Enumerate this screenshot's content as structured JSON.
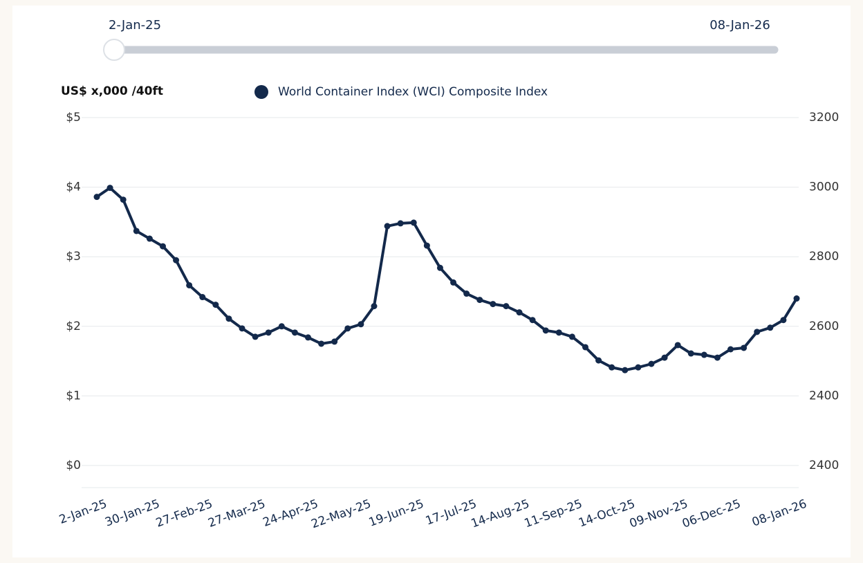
{
  "slider": {
    "start_label": "2-Jan-25",
    "end_label": "08-Jan-26"
  },
  "chart_data": {
    "type": "line",
    "y_axis_label": "US$ x,000 /40ft",
    "categories": [
      "2-Jan-25",
      null,
      null,
      null,
      "30-Jan-25",
      null,
      null,
      null,
      "27-Feb-25",
      null,
      null,
      null,
      "27-Mar-25",
      null,
      null,
      null,
      "24-Apr-25",
      null,
      null,
      null,
      "22-May-25",
      null,
      null,
      null,
      "19-Jun-25",
      null,
      null,
      null,
      "17-Jul-25",
      null,
      null,
      null,
      "14-Aug-25",
      null,
      null,
      null,
      "11-Sep-25",
      null,
      null,
      null,
      "14-Oct-25",
      null,
      null,
      null,
      "09-Nov-25",
      null,
      null,
      null,
      "06-Dec-25",
      null,
      null,
      null,
      null,
      "08-Jan-26"
    ],
    "series": [
      {
        "name": "World Container Index (WCI) Composite Index",
        "color": "#13294b",
        "values": [
          3.86,
          3.99,
          3.82,
          3.37,
          3.26,
          3.15,
          2.95,
          2.59,
          2.42,
          2.31,
          2.11,
          1.97,
          1.85,
          1.91,
          2.0,
          1.91,
          1.84,
          1.75,
          1.78,
          1.97,
          2.03,
          2.29,
          3.44,
          3.48,
          3.49,
          3.16,
          2.84,
          2.63,
          2.47,
          2.38,
          2.32,
          2.29,
          2.2,
          2.09,
          1.94,
          1.91,
          1.85,
          1.7,
          1.51,
          1.41,
          1.37,
          1.41,
          1.46,
          1.55,
          1.73,
          1.61,
          1.59,
          1.55,
          1.67,
          1.69,
          1.92,
          1.98,
          2.09,
          2.4
        ]
      }
    ],
    "ylim": [
      0,
      5
    ],
    "yticks": [
      {
        "value": 5,
        "label": "$5"
      },
      {
        "value": 4,
        "label": "$4"
      },
      {
        "value": 3,
        "label": "$3"
      },
      {
        "value": 2,
        "label": "$2"
      },
      {
        "value": 1,
        "label": "$1"
      },
      {
        "value": 0,
        "label": "$0"
      }
    ],
    "right_axis_labels": [
      "3200",
      "3000",
      "2800",
      "2600",
      "2400",
      "2400"
    ],
    "grid": true
  }
}
